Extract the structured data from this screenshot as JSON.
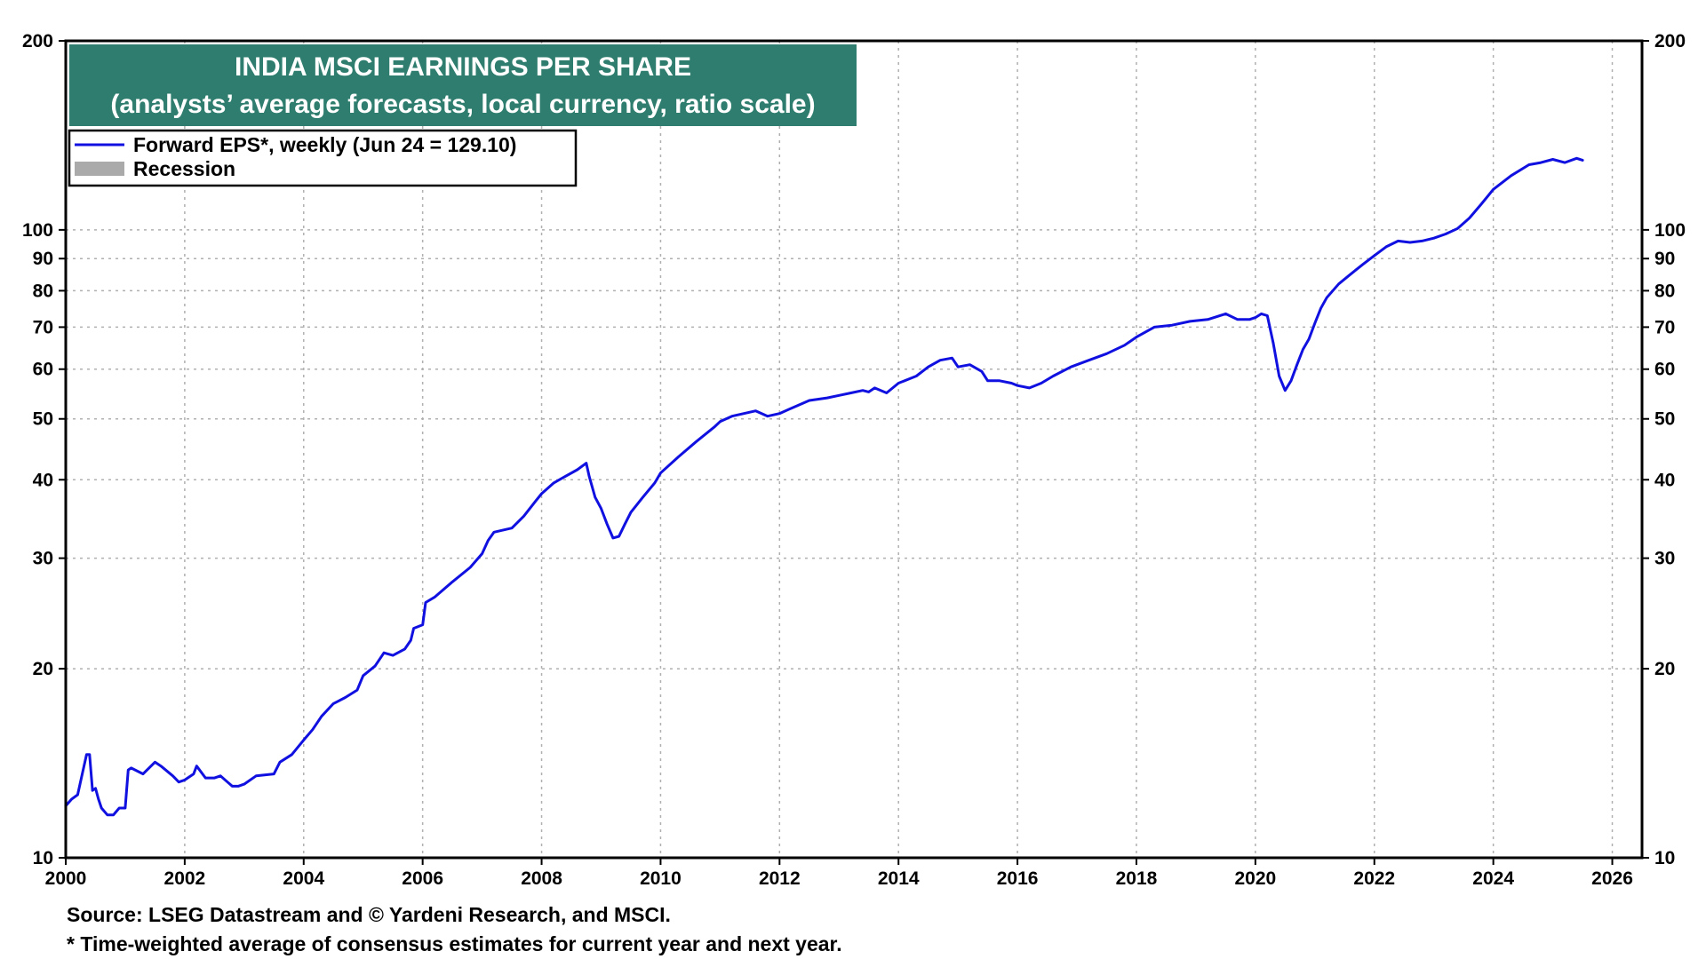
{
  "chart_data": {
    "type": "line",
    "title": "INDIA MSCI EARNINGS PER SHARE",
    "subtitle": "(analysts’ average forecasts, local currency, ratio scale)",
    "xlabel": "",
    "ylabel": "",
    "y_scale": "log",
    "ylim": [
      10,
      200
    ],
    "xlim": [
      2000,
      2026.5
    ],
    "x_ticks": [
      "2000",
      "2002",
      "2004",
      "2006",
      "2008",
      "2010",
      "2012",
      "2014",
      "2016",
      "2018",
      "2020",
      "2022",
      "2024",
      "2026"
    ],
    "y_ticks": [
      "10",
      "20",
      "30",
      "40",
      "50",
      "60",
      "70",
      "80",
      "90",
      "100",
      "200"
    ],
    "grid": true,
    "legend_position": "top-left",
    "legend": [
      {
        "label": "Forward EPS*, weekly (Jun 24 = 129.10)",
        "color": "#1010e0",
        "kind": "line"
      },
      {
        "label": "Recession",
        "color": "#aaaaaa",
        "kind": "area"
      }
    ],
    "series": [
      {
        "name": "Forward EPS*, weekly (Jun 24 = 129.10)",
        "color": "#1010e0",
        "x": [
          2000.0,
          2000.1,
          2000.2,
          2000.35,
          2000.4,
          2000.45,
          2000.5,
          2000.55,
          2000.6,
          2000.7,
          2000.8,
          2000.9,
          2001.0,
          2001.05,
          2001.1,
          2001.3,
          2001.5,
          2001.6,
          2001.8,
          2001.9,
          2002.0,
          2002.15,
          2002.2,
          2002.35,
          2002.5,
          2002.6,
          2002.8,
          2002.9,
          2003.0,
          2003.2,
          2003.5,
          2003.6,
          2003.8,
          2004.0,
          2004.15,
          2004.3,
          2004.5,
          2004.7,
          2004.9,
          2005.0,
          2005.2,
          2005.35,
          2005.5,
          2005.7,
          2005.8,
          2005.85,
          2006.0,
          2006.05,
          2006.2,
          2006.5,
          2006.8,
          2007.0,
          2007.1,
          2007.2,
          2007.5,
          2007.7,
          2007.9,
          2008.0,
          2008.2,
          2008.4,
          2008.6,
          2008.75,
          2008.8,
          2008.9,
          2009.0,
          2009.1,
          2009.2,
          2009.3,
          2009.4,
          2009.5,
          2009.7,
          2009.9,
          2010.0,
          2010.3,
          2010.6,
          2010.9,
          2011.0,
          2011.2,
          2011.4,
          2011.6,
          2011.8,
          2012.0,
          2012.2,
          2012.5,
          2012.8,
          2013.0,
          2013.2,
          2013.4,
          2013.5,
          2013.6,
          2013.8,
          2014.0,
          2014.3,
          2014.5,
          2014.7,
          2014.9,
          2015.0,
          2015.2,
          2015.4,
          2015.5,
          2015.7,
          2015.9,
          2016.0,
          2016.2,
          2016.4,
          2016.6,
          2016.9,
          2017.2,
          2017.5,
          2017.8,
          2018.0,
          2018.3,
          2018.6,
          2018.9,
          2019.2,
          2019.5,
          2019.7,
          2019.9,
          2020.0,
          2020.1,
          2020.2,
          2020.3,
          2020.4,
          2020.5,
          2020.6,
          2020.7,
          2020.8,
          2020.9,
          2021.0,
          2021.1,
          2021.2,
          2021.4,
          2021.6,
          2021.8,
          2022.0,
          2022.2,
          2022.4,
          2022.6,
          2022.8,
          2023.0,
          2023.2,
          2023.4,
          2023.6,
          2023.8,
          2024.0,
          2024.3,
          2024.6,
          2024.8,
          2025.0,
          2025.2,
          2025.4,
          2025.5
        ],
        "values": [
          12.1,
          12.4,
          12.6,
          14.6,
          14.6,
          12.8,
          12.9,
          12.4,
          12.0,
          11.7,
          11.7,
          12.0,
          12.0,
          13.8,
          13.9,
          13.6,
          14.2,
          14.0,
          13.5,
          13.2,
          13.3,
          13.6,
          14.0,
          13.4,
          13.4,
          13.5,
          13.0,
          13.0,
          13.1,
          13.5,
          13.6,
          14.2,
          14.6,
          15.4,
          16.0,
          16.8,
          17.6,
          18.0,
          18.5,
          19.5,
          20.2,
          21.2,
          21.0,
          21.5,
          22.2,
          23.2,
          23.5,
          25.5,
          26.0,
          27.5,
          29.0,
          30.5,
          32.0,
          33.0,
          33.5,
          35.0,
          37.0,
          38.0,
          39.5,
          40.5,
          41.5,
          42.5,
          40.5,
          37.5,
          36.0,
          34.0,
          32.3,
          32.5,
          34.0,
          35.5,
          37.5,
          39.5,
          41.0,
          43.5,
          46.0,
          48.5,
          49.5,
          50.5,
          51.0,
          51.5,
          50.5,
          51.0,
          52.0,
          53.5,
          54.0,
          54.5,
          55.0,
          55.5,
          55.2,
          56.0,
          55.0,
          57.0,
          58.5,
          60.5,
          62.0,
          62.5,
          60.5,
          61.0,
          59.5,
          57.5,
          57.5,
          57.0,
          56.5,
          56.0,
          57.0,
          58.5,
          60.5,
          62.0,
          63.5,
          65.5,
          67.5,
          70.0,
          70.5,
          71.5,
          72.0,
          73.5,
          72.0,
          72.0,
          72.5,
          73.5,
          73.0,
          66.0,
          58.5,
          55.5,
          57.5,
          61.0,
          64.5,
          67.0,
          71.0,
          75.0,
          78.0,
          82.0,
          85.0,
          88.0,
          91.0,
          94.0,
          96.0,
          95.5,
          96.0,
          97.0,
          98.5,
          100.5,
          104.5,
          110.0,
          116.0,
          122.0,
          127.0,
          128.0,
          129.5,
          128.0,
          130.0,
          129.1
        ]
      }
    ]
  },
  "footer": {
    "source": "Source: LSEG Datastream and © Yardeni Research, and MSCI.",
    "note": "* Time-weighted average of consensus estimates for current year and next year."
  }
}
